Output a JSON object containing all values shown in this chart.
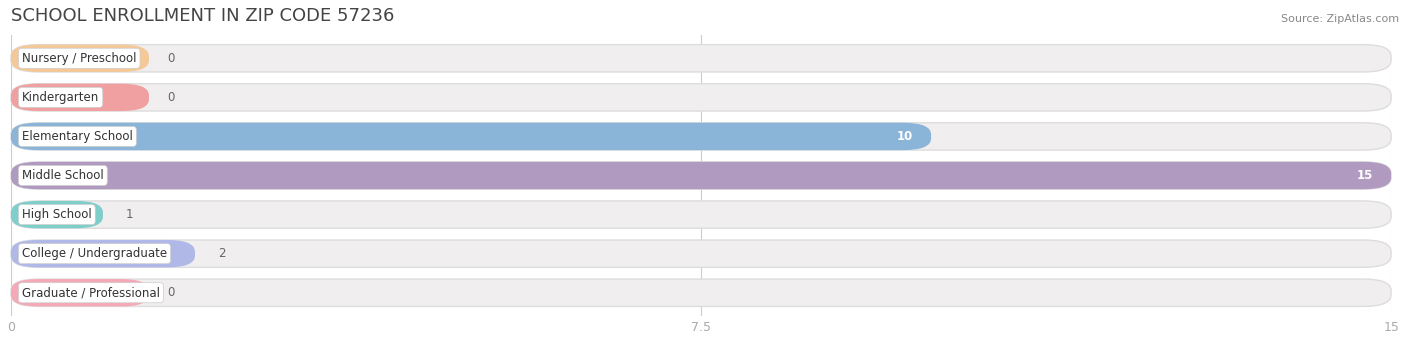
{
  "title": "SCHOOL ENROLLMENT IN ZIP CODE 57236",
  "source": "Source: ZipAtlas.com",
  "categories": [
    "Nursery / Preschool",
    "Kindergarten",
    "Elementary School",
    "Middle School",
    "High School",
    "College / Undergraduate",
    "Graduate / Professional"
  ],
  "values": [
    0,
    0,
    10,
    15,
    1,
    2,
    0
  ],
  "bar_colors": [
    "#f5c897",
    "#f0a0a0",
    "#8ab4d8",
    "#b09ac0",
    "#7ececa",
    "#b0b8e8",
    "#f5a8b8"
  ],
  "bar_bg_colors": [
    "#f0eeee",
    "#f0eeee",
    "#f0eeee",
    "#f0eeee",
    "#f0eeee",
    "#f0eeee",
    "#f0eeee"
  ],
  "xlim": [
    0,
    15
  ],
  "xticks": [
    0,
    7.5,
    15
  ],
  "label_fontsize": 8.5,
  "title_fontsize": 13,
  "value_label_color_inside": "#ffffff",
  "value_label_color_outside": "#666666",
  "bg_color": "#ffffff"
}
